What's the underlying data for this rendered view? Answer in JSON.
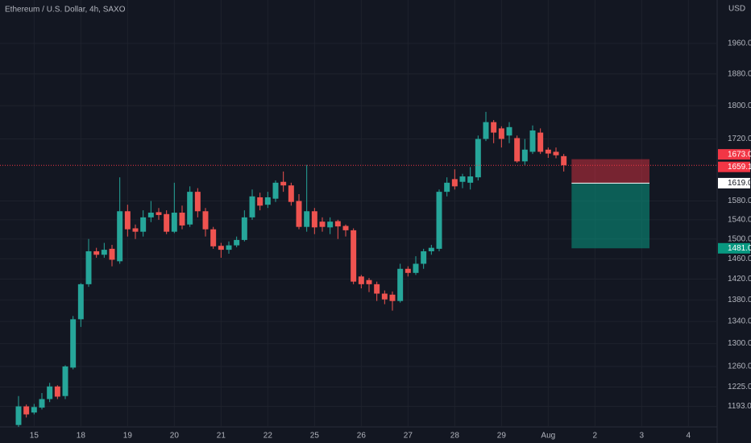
{
  "chart_data": {
    "type": "candlestick",
    "title": "Ethereum / U.S. Dollar, 4h, SAXO",
    "y_axis_label": "USD",
    "log_scale": true,
    "grid": true,
    "up_color": "#26a69a",
    "down_color": "#ef5350",
    "open": [
      1163,
      1193,
      1183,
      1191,
      1205,
      1226,
      1210,
      1258,
      1344,
      1410,
      1475,
      1468,
      1480,
      1455,
      1558,
      1522,
      1515,
      1545,
      1556,
      1552,
      1515,
      1555,
      1530,
      1600,
      1558,
      1520,
      1486,
      1478,
      1487,
      1498,
      1545,
      1588,
      1572,
      1585,
      1622,
      1614,
      1580,
      1525,
      1558,
      1536,
      1524,
      1537,
      1527,
      1518,
      1425,
      1418,
      1410,
      1392,
      1390,
      1378,
      1440,
      1432,
      1450,
      1475,
      1480,
      1600,
      1628,
      1622,
      1620,
      1632,
      1720,
      1760,
      1745,
      1728,
      1722,
      1668,
      1690,
      1735,
      1695,
      1690,
      1680
    ],
    "high": [
      1210,
      1196,
      1197,
      1215,
      1232,
      1228,
      1262,
      1350,
      1412,
      1500,
      1482,
      1492,
      1488,
      1632,
      1572,
      1530,
      1560,
      1580,
      1565,
      1560,
      1620,
      1570,
      1612,
      1608,
      1565,
      1525,
      1492,
      1495,
      1505,
      1560,
      1605,
      1598,
      1600,
      1625,
      1645,
      1620,
      1595,
      1660,
      1565,
      1545,
      1545,
      1540,
      1530,
      1522,
      1428,
      1422,
      1415,
      1398,
      1396,
      1450,
      1445,
      1465,
      1480,
      1488,
      1605,
      1632,
      1650,
      1640,
      1655,
      1728,
      1785,
      1765,
      1750,
      1760,
      1728,
      1720,
      1752,
      1745,
      1700,
      1700,
      1685
    ],
    "low": [
      1160,
      1175,
      1180,
      1188,
      1200,
      1205,
      1205,
      1255,
      1330,
      1405,
      1462,
      1462,
      1445,
      1450,
      1505,
      1500,
      1505,
      1535,
      1540,
      1510,
      1512,
      1520,
      1525,
      1545,
      1505,
      1480,
      1462,
      1470,
      1483,
      1495,
      1540,
      1560,
      1565,
      1578,
      1600,
      1570,
      1520,
      1515,
      1510,
      1515,
      1510,
      1500,
      1505,
      1410,
      1402,
      1395,
      1378,
      1372,
      1360,
      1375,
      1425,
      1428,
      1440,
      1468,
      1475,
      1590,
      1605,
      1608,
      1605,
      1625,
      1715,
      1710,
      1700,
      1710,
      1665,
      1660,
      1685,
      1685,
      1676,
      1675,
      1645
    ],
    "close": [
      1193,
      1180,
      1192,
      1205,
      1226,
      1209,
      1260,
      1344,
      1410,
      1475,
      1468,
      1478,
      1458,
      1558,
      1520,
      1515,
      1545,
      1555,
      1550,
      1515,
      1555,
      1528,
      1600,
      1558,
      1520,
      1485,
      1478,
      1487,
      1498,
      1545,
      1590,
      1570,
      1588,
      1620,
      1614,
      1578,
      1525,
      1558,
      1524,
      1525,
      1536,
      1526,
      1518,
      1415,
      1410,
      1410,
      1392,
      1381,
      1378,
      1440,
      1432,
      1450,
      1475,
      1482,
      1600,
      1620,
      1612,
      1634,
      1634,
      1720,
      1760,
      1735,
      1720,
      1748,
      1668,
      1695,
      1740,
      1690,
      1686,
      1682,
      1659
    ],
    "xlim": [
      0,
      90
    ],
    "xticks": [
      {
        "value": 2,
        "label": "15"
      },
      {
        "value": 8,
        "label": "18"
      },
      {
        "value": 14,
        "label": "19"
      },
      {
        "value": 20,
        "label": "20"
      },
      {
        "value": 26,
        "label": "21"
      },
      {
        "value": 32,
        "label": "22"
      },
      {
        "value": 38,
        "label": "25"
      },
      {
        "value": 44,
        "label": "26"
      },
      {
        "value": 50,
        "label": "27"
      },
      {
        "value": 56,
        "label": "28"
      },
      {
        "value": 62,
        "label": "29"
      },
      {
        "value": 68,
        "label": "Aug"
      },
      {
        "value": 74,
        "label": "2"
      },
      {
        "value": 80,
        "label": "3"
      },
      {
        "value": 86,
        "label": "4"
      }
    ],
    "ylim": [
      1160,
      2080
    ],
    "yticks": [
      {
        "value": 1960,
        "label": "1960.0"
      },
      {
        "value": 1880,
        "label": "1880.0"
      },
      {
        "value": 1800,
        "label": "1800.0"
      },
      {
        "value": 1720,
        "label": "1720.0"
      },
      {
        "value": 1580,
        "label": "1580.0"
      },
      {
        "value": 1540,
        "label": "1540.0"
      },
      {
        "value": 1500,
        "label": "1500.0"
      },
      {
        "value": 1460,
        "label": "1460.0"
      },
      {
        "value": 1420,
        "label": "1420.0"
      },
      {
        "value": 1380,
        "label": "1380.0"
      },
      {
        "value": 1340,
        "label": "1340.0"
      },
      {
        "value": 1300,
        "label": "1300.0"
      },
      {
        "value": 1260,
        "label": "1260.0"
      },
      {
        "value": 1225,
        "label": "1225.0"
      },
      {
        "value": 1193,
        "label": "1193.0"
      }
    ],
    "last_price": {
      "value": 1659.1,
      "label": "1659.1",
      "color": "#f23645"
    },
    "position": {
      "start": 71,
      "end": 81,
      "stop": {
        "value": 1673.0,
        "label": "1673.0",
        "color": "#f23645"
      },
      "entry": {
        "value": 1619.0,
        "label": "1619.0",
        "color": "#ffffff"
      },
      "target": {
        "value": 1481.0,
        "label": "1481.0",
        "color": "#089981"
      }
    }
  }
}
